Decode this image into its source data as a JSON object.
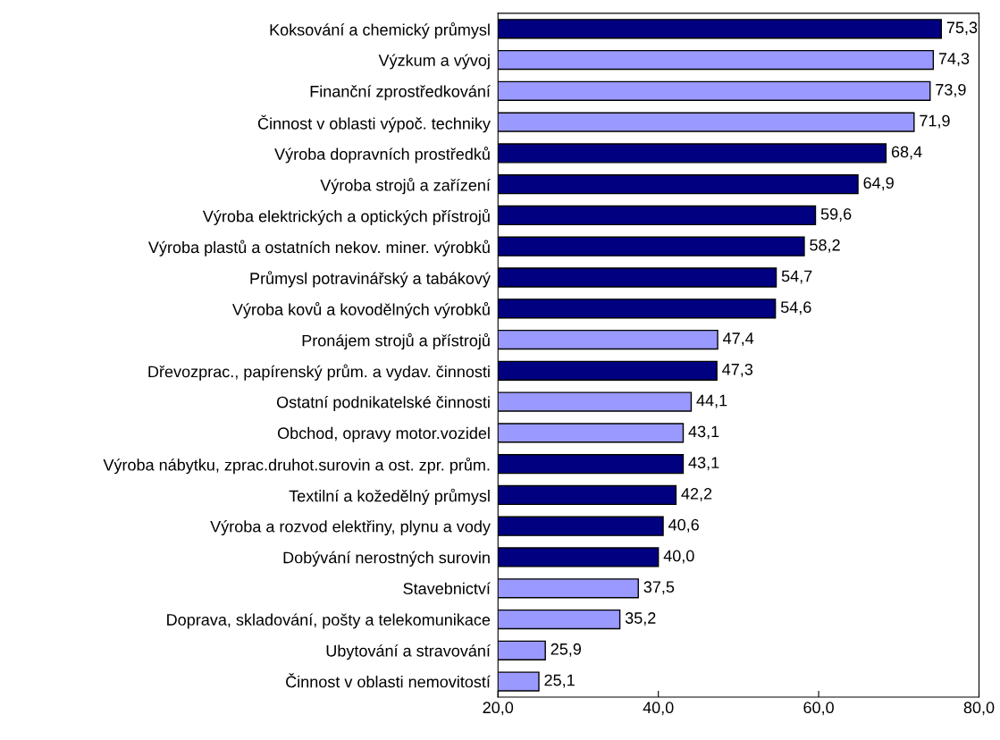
{
  "chart_data": {
    "type": "bar",
    "orientation": "horizontal",
    "categories": [
      "Koksování a chemický průmysl",
      "Výzkum a vývoj",
      "Finanční zprostředkování",
      "Činnost v oblasti výpoč. techniky",
      "Výroba dopravních prostředků",
      "Výroba strojů a zařízení",
      "Výroba elektrických a optických přístrojů",
      "Výroba plastů a ostatních nekov. miner. výrobků",
      "Průmysl potravinářský a tabákový",
      "Výroba kovů a kovodělných výrobků",
      "Pronájem strojů a přístrojů",
      "Dřevozprac., papírenský prům. a vydav. činnosti",
      "Ostatní podnikatelské činnosti",
      "Obchod, opravy motor.vozidel",
      "Výroba nábytku, zprac.druhot.surovin a ost. zpr. prům.",
      "Textilní a kožedělný průmysl",
      "Výroba a rozvod elektřiny, plynu a vody",
      "Dobývání nerostných surovin",
      "Stavebnictví",
      "Doprava, skladování, pošty a telekomunikace",
      "Ubytování a stravování",
      "Činnost v oblasti nemovitostí"
    ],
    "values": [
      75.3,
      74.3,
      73.9,
      71.9,
      68.4,
      64.9,
      59.6,
      58.2,
      54.7,
      54.6,
      47.4,
      47.3,
      44.1,
      43.1,
      43.1,
      42.2,
      40.6,
      40.0,
      37.5,
      35.2,
      25.9,
      25.1
    ],
    "value_labels": [
      "75,3",
      "74,3",
      "73,9",
      "71,9",
      "68,4",
      "64,9",
      "59,6",
      "58,2",
      "54,7",
      "54,6",
      "47,4",
      "47,3",
      "44,1",
      "43,1",
      "43,1",
      "42,2",
      "40,6",
      "40,0",
      "37,5",
      "35,2",
      "25,9",
      "25,1"
    ],
    "colors": [
      "#000080",
      "#9999ff",
      "#9999ff",
      "#9999ff",
      "#000080",
      "#000080",
      "#000080",
      "#000080",
      "#000080",
      "#000080",
      "#9999ff",
      "#000080",
      "#9999ff",
      "#9999ff",
      "#000080",
      "#000080",
      "#000080",
      "#000080",
      "#9999ff",
      "#9999ff",
      "#9999ff",
      "#9999ff"
    ],
    "xlim": [
      20,
      80
    ],
    "xticks": [
      {
        "value": 20,
        "label": "20,0"
      },
      {
        "value": 40,
        "label": "40,0"
      },
      {
        "value": 60,
        "label": "60,0"
      },
      {
        "value": 80,
        "label": "80,0"
      }
    ],
    "grid": false,
    "legend": false
  }
}
